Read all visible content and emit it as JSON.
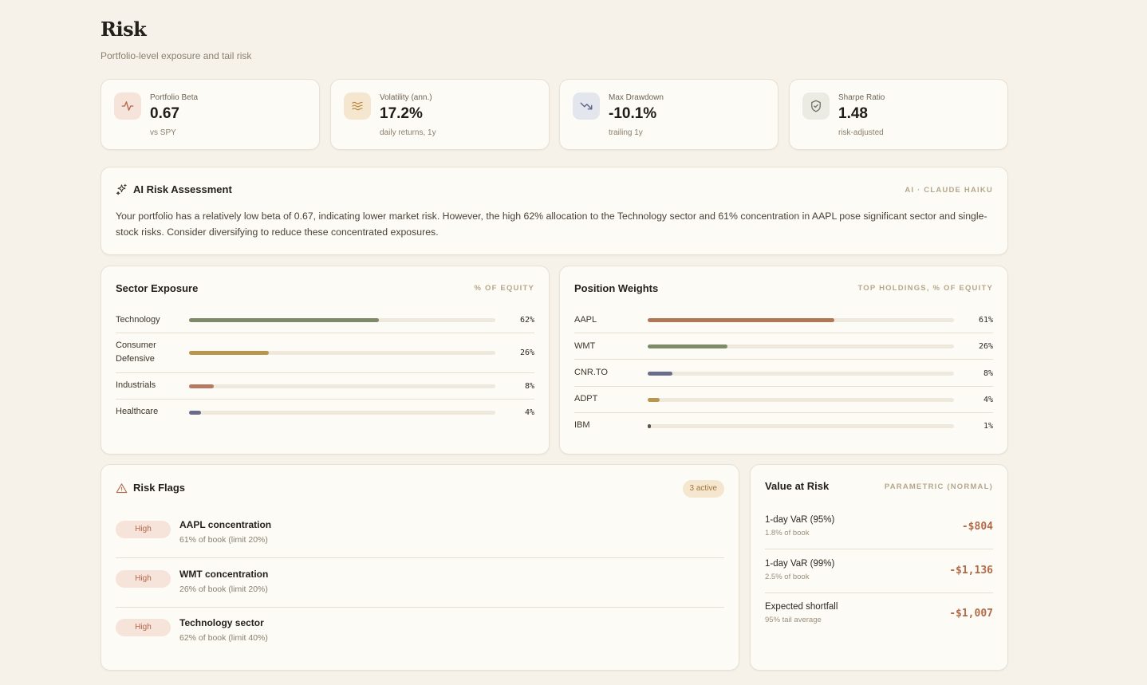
{
  "header": {
    "title": "Risk",
    "subtitle": "Portfolio-level exposure and tail risk"
  },
  "stats": [
    {
      "icon": "activity-icon",
      "label": "Portfolio Beta",
      "value": "0.67",
      "sub": "vs SPY",
      "icon_bg": "#f6e3da",
      "icon_color": "#b4664a"
    },
    {
      "icon": "waves-icon",
      "label": "Volatility (ann.)",
      "value": "17.2%",
      "sub": "daily returns, 1y",
      "icon_bg": "#f5e7cf",
      "icon_color": "#b9893e"
    },
    {
      "icon": "trending-down-icon",
      "label": "Max Drawdown",
      "value": "-10.1%",
      "sub": "trailing 1y",
      "icon_bg": "#e4e6ee",
      "icon_color": "#5b6285"
    },
    {
      "icon": "shield-check-icon",
      "label": "Sharpe Ratio",
      "value": "1.48",
      "sub": "risk-adjusted",
      "icon_bg": "#ebebe3",
      "icon_color": "#6b6e5e"
    }
  ],
  "ai": {
    "title": "AI Risk Assessment",
    "tag": "AI · CLAUDE HAIKU",
    "text": "Your portfolio has a relatively low beta of 0.67, indicating lower market risk. However, the high 62% allocation to the Technology sector and 61% concentration in AAPL pose significant sector and single-stock risks. Consider diversifying to reduce these concentrated exposures."
  },
  "sector": {
    "title": "Sector Exposure",
    "tag": "% OF EQUITY",
    "rows": [
      {
        "name": "Technology",
        "pct_label": "62%",
        "pct": 62,
        "color": "#7d8b68"
      },
      {
        "name": "Consumer Defensive",
        "pct_label": "26%",
        "pct": 26,
        "color": "#b9964e"
      },
      {
        "name": "Industrials",
        "pct_label": "8%",
        "pct": 8,
        "color": "#b57a60"
      },
      {
        "name": "Healthcare",
        "pct_label": "4%",
        "pct": 4,
        "color": "#6a6c8c"
      }
    ]
  },
  "positions": {
    "title": "Position Weights",
    "tag": "TOP HOLDINGS, % OF EQUITY",
    "rows": [
      {
        "name": "AAPL",
        "pct_label": "61%",
        "pct": 61,
        "color": "#b07656"
      },
      {
        "name": "WMT",
        "pct_label": "26%",
        "pct": 26,
        "color": "#7d8b68"
      },
      {
        "name": "CNR.TO",
        "pct_label": "8%",
        "pct": 8,
        "color": "#6a6c8c"
      },
      {
        "name": "ADPT",
        "pct_label": "4%",
        "pct": 4,
        "color": "#b9964e"
      },
      {
        "name": "IBM",
        "pct_label": "1%",
        "pct": 1,
        "color": "#5a5448"
      }
    ]
  },
  "flags": {
    "title": "Risk Flags",
    "badge": "3 active",
    "items": [
      {
        "level": "High",
        "title": "AAPL concentration",
        "sub": "61% of book (limit 20%)"
      },
      {
        "level": "High",
        "title": "WMT concentration",
        "sub": "26% of book (limit 20%)"
      },
      {
        "level": "High",
        "title": "Technology sector",
        "sub": "62% of book (limit 40%)"
      }
    ]
  },
  "var": {
    "title": "Value at Risk",
    "tag": "PARAMETRIC (NORMAL)",
    "rows": [
      {
        "label": "1-day VaR (95%)",
        "sub": "1.8% of book",
        "value": "-$804"
      },
      {
        "label": "1-day VaR (99%)",
        "sub": "2.5% of book",
        "value": "-$1,136"
      },
      {
        "label": "Expected shortfall",
        "sub": "95% tail average",
        "value": "-$1,007"
      }
    ]
  }
}
